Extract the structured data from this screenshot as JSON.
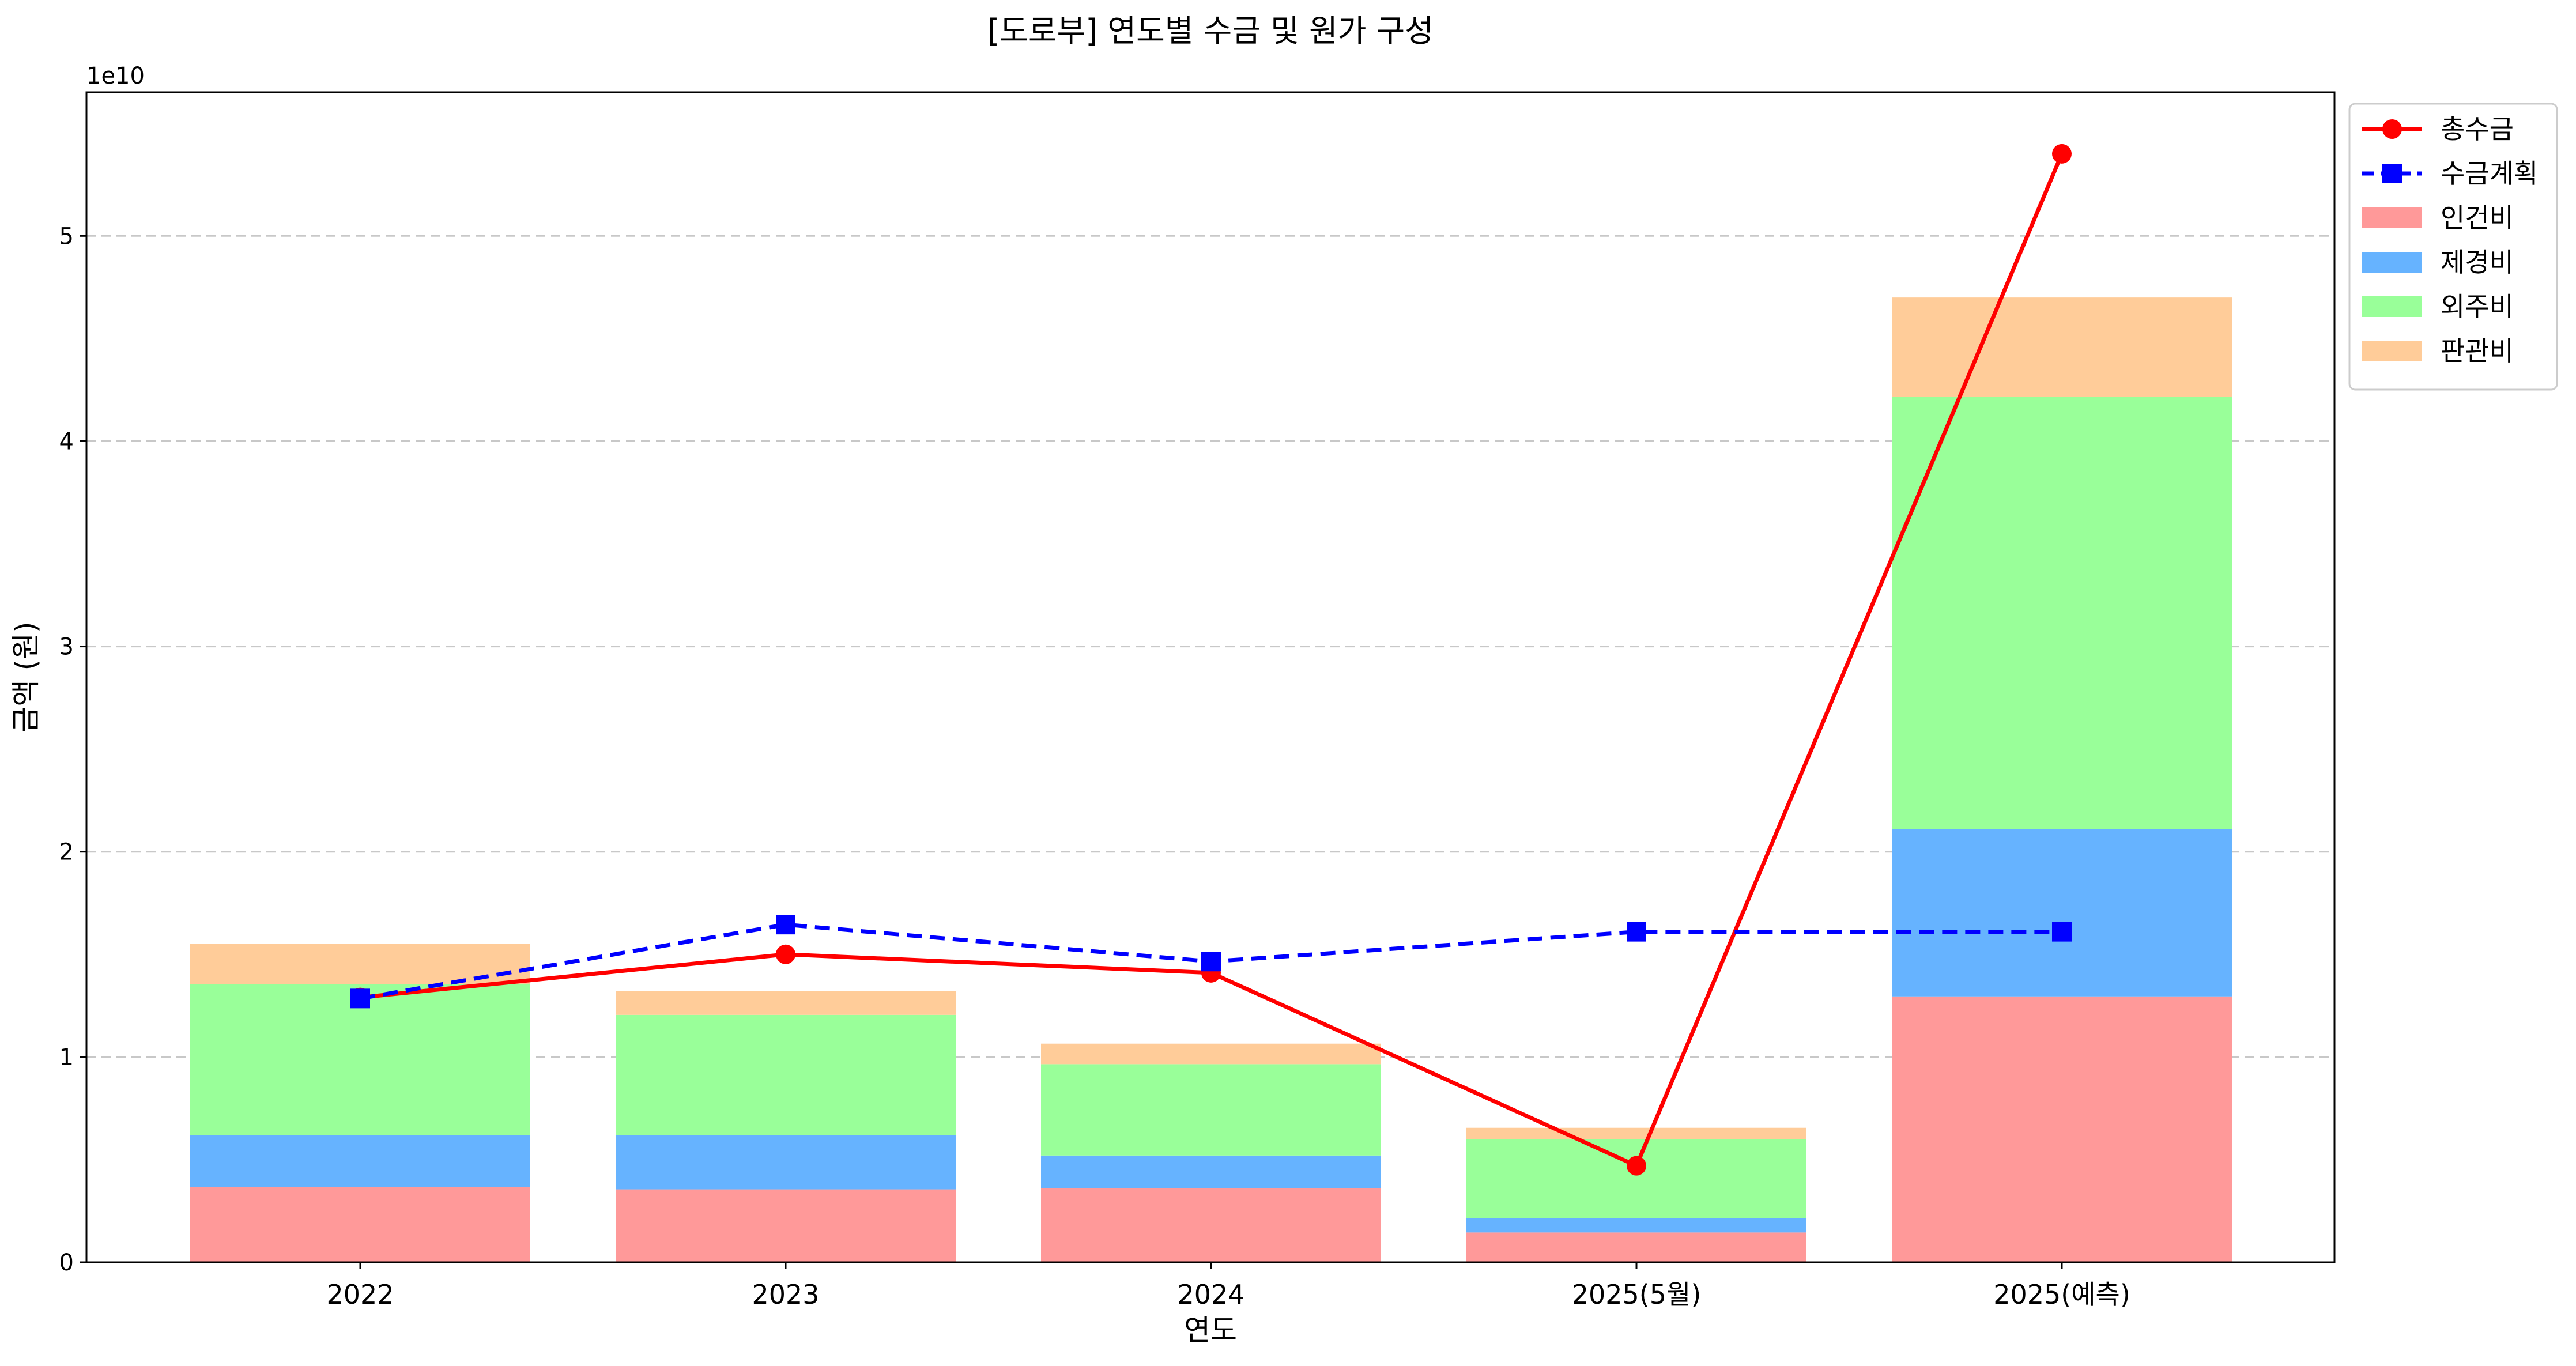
{
  "chart_data": {
    "type": "bar",
    "title": "[도로부] 연도별 수금 및 원가 구성",
    "xlabel": "연도",
    "ylabel": "금액 (원)",
    "y_offset_label": "1e10",
    "categories": [
      "2022",
      "2023",
      "2024",
      "2025(5월)",
      "2025(예측)"
    ],
    "ylim": [
      0,
      57000000000
    ],
    "yticks": [
      0,
      10000000000,
      20000000000,
      30000000000,
      40000000000,
      50000000000
    ],
    "ytick_labels": [
      "0",
      "1",
      "2",
      "3",
      "4",
      "5"
    ],
    "grid": "horizontal dashed",
    "legend_position": "upper-right outside",
    "stacked_series": [
      {
        "name": "인건비",
        "color": "#ff9999",
        "values": [
          3650000000,
          3550000000,
          3600000000,
          1450000000,
          12950000000
        ]
      },
      {
        "name": "제경비",
        "color": "#66b3ff",
        "values": [
          2550000000,
          2650000000,
          1600000000,
          700000000,
          8150000000
        ]
      },
      {
        "name": "외주비",
        "color": "#99ff99",
        "values": [
          7350000000,
          5850000000,
          4450000000,
          3850000000,
          21050000000
        ]
      },
      {
        "name": "판관비",
        "color": "#ffcc99",
        "values": [
          1950000000,
          1150000000,
          1000000000,
          550000000,
          4850000000
        ]
      }
    ],
    "line_series": [
      {
        "name": "총수금",
        "color": "#ff0000",
        "style": "solid",
        "marker": "circle",
        "values": [
          12900000000,
          15000000000,
          14100000000,
          4700000000,
          54000000000
        ]
      },
      {
        "name": "수금계획",
        "color": "#0000ff",
        "style": "dashed",
        "marker": "square",
        "values": [
          12850000000,
          16450000000,
          14650000000,
          16100000000,
          16100000000
        ]
      }
    ]
  }
}
